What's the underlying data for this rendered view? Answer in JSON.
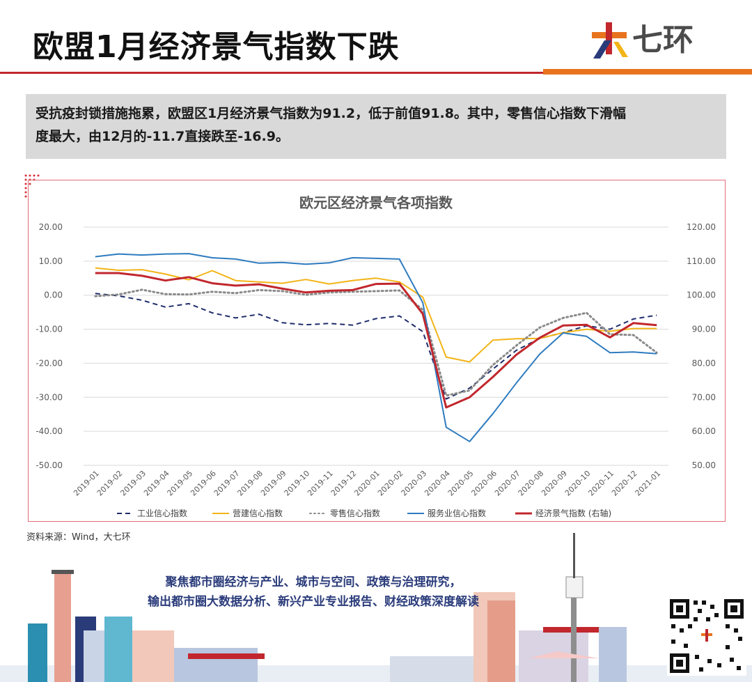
{
  "header": {
    "title": "欧盟1月经济景气指数下跌",
    "logo_text": "七环"
  },
  "summary": {
    "line1": "受抗疫封锁措施拖累，欧盟区1月经济景气指数为91.2，低于前值91.8。其中，零售信心指数下滑幅",
    "line2": "度最大，由12月的-11.7直接跌至-16.9。"
  },
  "source": "资料来源：Wind，大七环",
  "footer": {
    "line1": "聚焦都市圈经济与产业、城市与空间、政策与治理研究，",
    "line2": "输出都市圈大数据分析、新兴产业专业报告、财经政策深度解读"
  },
  "colors": {
    "accent_red": "#c1272d",
    "accent_orange": "#e8731e",
    "summary_bg": "#d9d9d9",
    "footer_text": "#2a3b7a"
  },
  "chart_data": {
    "type": "line",
    "title": "欧元区经济景气各项指数",
    "x": [
      "2019-01",
      "2019-02",
      "2019-03",
      "2019-04",
      "2019-05",
      "2019-06",
      "2019-07",
      "2019-08",
      "2019-09",
      "2019-10",
      "2019-11",
      "2019-12",
      "2020-01",
      "2020-02",
      "2020-03",
      "2020-04",
      "2020-05",
      "2020-06",
      "2020-07",
      "2020-08",
      "2020-09",
      "2020-10",
      "2020-11",
      "2020-12",
      "2021-01"
    ],
    "y_left": {
      "min": -50,
      "max": 20,
      "step": 10,
      "ticks": [
        "20.00",
        "10.00",
        "0.00",
        "-10.00",
        "-20.00",
        "-30.00",
        "-40.00",
        "-50.00"
      ]
    },
    "y_right": {
      "min": 50,
      "max": 120,
      "step": 10,
      "ticks": [
        "120.00",
        "110.00",
        "100.00",
        "90.00",
        "80.00",
        "70.00",
        "60.00",
        "50.00"
      ]
    },
    "grid": true,
    "legend_position": "bottom",
    "series": [
      {
        "name": "工业信心指数",
        "axis": "left",
        "color": "#1f2d6b",
        "style": "dash",
        "values": [
          0.5,
          -0.2,
          -1.5,
          -3.5,
          -2.5,
          -5.2,
          -6.7,
          -5.6,
          -8.1,
          -8.7,
          -8.3,
          -8.8,
          -6.9,
          -6.1,
          -10.7,
          -30.5,
          -27.3,
          -21.7,
          -16.2,
          -12.7,
          -11.0,
          -9.0,
          -10.0,
          -7.0,
          -5.9
        ]
      },
      {
        "name": "营建信心指数",
        "axis": "left",
        "color": "#f2b416",
        "style": "solid",
        "values": [
          8.0,
          7.3,
          7.5,
          6.2,
          4.5,
          7.2,
          4.3,
          3.9,
          3.5,
          4.6,
          3.3,
          4.3,
          5.0,
          3.9,
          -0.6,
          -18.2,
          -19.6,
          -13.2,
          -12.8,
          -12.7,
          -11.0,
          -10.0,
          -10.6,
          -9.8,
          -9.8
        ]
      },
      {
        "name": "零售信心指数",
        "axis": "left",
        "color": "#8a8a8a",
        "style": "dot",
        "values": [
          -0.3,
          0.2,
          1.6,
          0.3,
          0.2,
          1.0,
          0.6,
          1.5,
          1.2,
          0.1,
          0.8,
          1.0,
          1.2,
          1.4,
          -4.3,
          -29.5,
          -28.0,
          -20.5,
          -14.8,
          -9.5,
          -6.7,
          -5.2,
          -11.5,
          -11.7,
          -16.9
        ]
      },
      {
        "name": "服务业信心指数",
        "axis": "left",
        "color": "#2e7bbf",
        "style": "solid",
        "values": [
          11.3,
          12.1,
          11.8,
          12.1,
          12.2,
          11.0,
          10.6,
          9.4,
          9.6,
          9.1,
          9.5,
          11.0,
          10.8,
          10.6,
          -2.2,
          -38.8,
          -43.0,
          -34.8,
          -25.8,
          -17.3,
          -11.1,
          -12.1,
          -16.9,
          -16.7,
          -17.2
        ]
      },
      {
        "name": "经济景气指数 (右轴)",
        "axis": "right",
        "color": "#c1272d",
        "style": "solid",
        "values": [
          106.5,
          106.5,
          105.7,
          104.3,
          105.3,
          103.5,
          102.8,
          103.2,
          101.9,
          100.8,
          101.3,
          101.5,
          103.3,
          103.4,
          94.5,
          67.0,
          70.0,
          76.0,
          82.5,
          87.5,
          91.1,
          91.3,
          87.6,
          91.8,
          91.2
        ]
      }
    ]
  }
}
